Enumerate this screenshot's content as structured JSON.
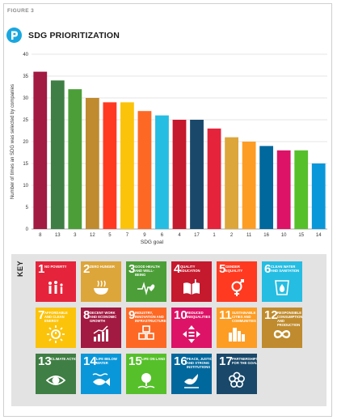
{
  "figure_label": "FIGURE 3",
  "header": {
    "title": "SDG PRIORITIZATION",
    "logo_icon": "sdg-p-logo-icon",
    "logo_color": "#19a7e0"
  },
  "chart_data": {
    "type": "bar",
    "xlabel": "SDG goal",
    "ylabel": "Number of times an SDG was selected by companies",
    "ylim": [
      0,
      40
    ],
    "yticks": [
      0,
      5,
      10,
      15,
      20,
      25,
      30,
      35,
      40
    ],
    "grid": true,
    "categories": [
      "8",
      "13",
      "3",
      "12",
      "5",
      "7",
      "9",
      "6",
      "4",
      "17",
      "1",
      "2",
      "11",
      "16",
      "10",
      "15",
      "14"
    ],
    "values": [
      36,
      34,
      32,
      30,
      29,
      29,
      27,
      26,
      25,
      25,
      23,
      21,
      20,
      19,
      18,
      18,
      15
    ],
    "colors": [
      "#a21942",
      "#3f7e44",
      "#4c9f38",
      "#bf8b2e",
      "#ff3a21",
      "#fcc30b",
      "#fd6925",
      "#26bde2",
      "#c5192d",
      "#19486a",
      "#e5243b",
      "#dda63a",
      "#fd9d24",
      "#00689d",
      "#dd1367",
      "#56c02b",
      "#0a97d9"
    ]
  },
  "key": {
    "label": "KEY",
    "goals": [
      {
        "num": "1",
        "text": "NO POVERTY",
        "color": "#e5243b",
        "icon": "family-icon"
      },
      {
        "num": "2",
        "text": "ZERO HUNGER",
        "color": "#dda63a",
        "icon": "bowl-icon"
      },
      {
        "num": "3",
        "text": "GOOD HEALTH AND WELL-BEING",
        "color": "#4c9f38",
        "icon": "heartbeat-icon"
      },
      {
        "num": "4",
        "text": "QUALITY EDUCATION",
        "color": "#c5192d",
        "icon": "book-icon"
      },
      {
        "num": "5",
        "text": "GENDER EQUALITY",
        "color": "#ff3a21",
        "icon": "gender-icon"
      },
      {
        "num": "6",
        "text": "CLEAN WATER AND SANITATION",
        "color": "#26bde2",
        "icon": "water-drop-icon"
      },
      {
        "num": "7",
        "text": "AFFORDABLE AND CLEAN ENERGY",
        "color": "#fcc30b",
        "icon": "sun-power-icon"
      },
      {
        "num": "8",
        "text": "DECENT WORK AND ECONOMIC GROWTH",
        "color": "#a21942",
        "icon": "growth-chart-icon"
      },
      {
        "num": "9",
        "text": "INDUSTRY, INNOVATION AND INFRASTRUCTURE",
        "color": "#fd6925",
        "icon": "cubes-icon"
      },
      {
        "num": "10",
        "text": "REDUCED INEQUALITIES",
        "color": "#dd1367",
        "icon": "equals-icon"
      },
      {
        "num": "11",
        "text": "SUSTAINABLE CITIES AND COMMUNITIES",
        "color": "#fd9d24",
        "icon": "city-icon"
      },
      {
        "num": "12",
        "text": "RESPONSIBLE CONSUMPTION AND PRODUCTION",
        "color": "#bf8b2e",
        "icon": "infinity-icon"
      },
      {
        "num": "13",
        "text": "CLIMATE ACTION",
        "color": "#3f7e44",
        "icon": "eye-globe-icon"
      },
      {
        "num": "14",
        "text": "LIFE BELOW WATER",
        "color": "#0a97d9",
        "icon": "fish-icon"
      },
      {
        "num": "15",
        "text": "LIFE ON LAND",
        "color": "#56c02b",
        "icon": "tree-icon"
      },
      {
        "num": "16",
        "text": "PEACE, JUSTICE AND STRONG INSTITUTIONS",
        "color": "#00689d",
        "icon": "dove-icon"
      },
      {
        "num": "17",
        "text": "PARTNERSHIPS FOR THE GOALS",
        "color": "#19486a",
        "icon": "rings-icon"
      }
    ]
  }
}
